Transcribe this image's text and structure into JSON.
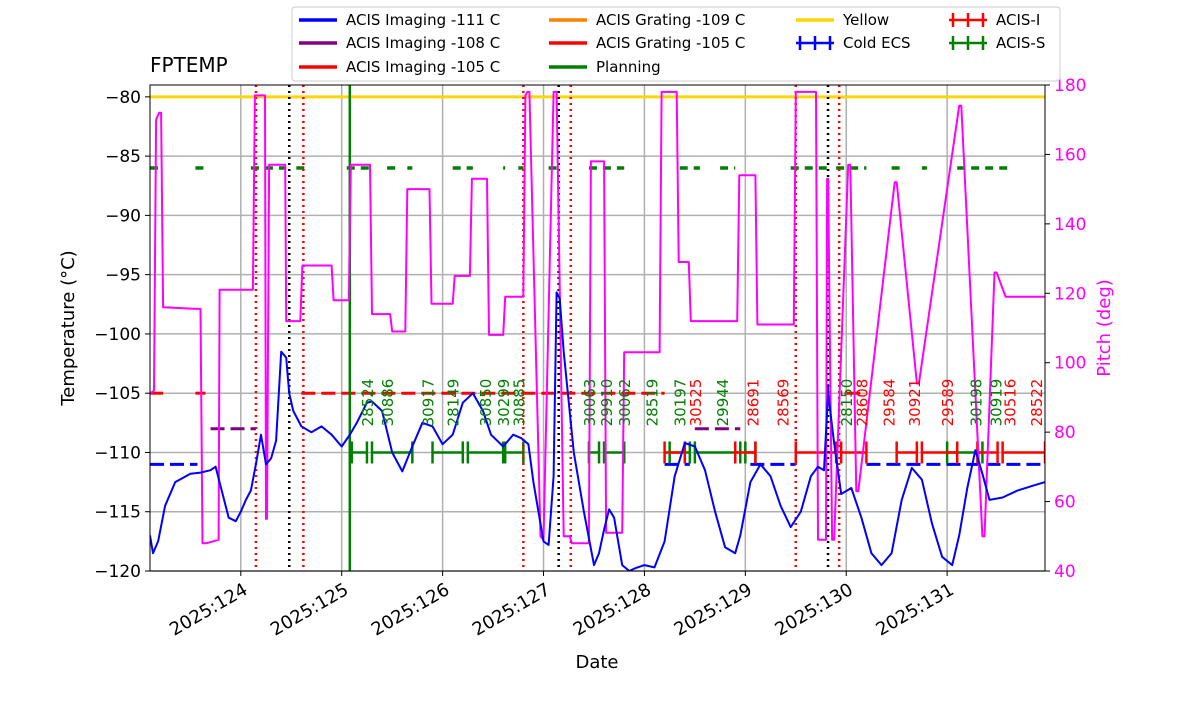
{
  "chart_data": {
    "type": "line",
    "title": "FPTEMP",
    "xlabel": "Date",
    "ylabel": "Temperature ($^\\circ$C)",
    "ylabel_text": "Temperature (°C)",
    "y2label": "Pitch (deg)",
    "xlim": [
      123.1,
      131.97
    ],
    "ylim": [
      -120,
      -79
    ],
    "y2lim": [
      40,
      180
    ],
    "grid": true,
    "x_ticks": [
      124,
      125,
      126,
      127,
      128,
      129,
      130,
      131
    ],
    "x_tick_labels": [
      "2025:124",
      "2025:125",
      "2025:126",
      "2025:127",
      "2025:128",
      "2025:129",
      "2025:130",
      "2025:131"
    ],
    "y_ticks": [
      -120,
      -115,
      -110,
      -105,
      -100,
      -95,
      -90,
      -85,
      -80
    ],
    "y_tick_labels": [
      "−120",
      "−115",
      "−110",
      "−105",
      "−100",
      "−95",
      "−90",
      "−85",
      "−80"
    ],
    "y2_ticks": [
      40,
      60,
      80,
      100,
      120,
      140,
      160,
      180
    ],
    "y2_tick_labels": [
      "40",
      "60",
      "80",
      "100",
      "120",
      "140",
      "160",
      "180"
    ],
    "legend": {
      "placement": "top",
      "entries": [
        {
          "label": "ACIS Imaging -111 C",
          "color": "#0000ff",
          "style": "line"
        },
        {
          "label": "ACIS Imaging -108 C",
          "color": "#800080",
          "style": "line"
        },
        {
          "label": "ACIS Imaging -105 C",
          "color": "#ff0000",
          "style": "line"
        },
        {
          "label": "ACIS Grating -109 C",
          "color": "#ff8000",
          "style": "line"
        },
        {
          "label": "ACIS Grating -105 C",
          "color": "#ff0000",
          "style": "line"
        },
        {
          "label": "Planning",
          "color": "#008000",
          "style": "line"
        },
        {
          "label": "Yellow",
          "color": "#ffd700",
          "style": "line"
        },
        {
          "label": "Cold ECS",
          "color": "#0000ff",
          "style": "errbar"
        },
        {
          "label": "ACIS-I",
          "color": "#ff0000",
          "style": "errbar"
        },
        {
          "label": "ACIS-S",
          "color": "#008000",
          "style": "errbar"
        }
      ]
    },
    "colors": {
      "fptemp": "#0000ff",
      "pitch": "#ff00ff",
      "yellow": "#ffd700",
      "planning": "#008000",
      "acis_i": "#ff0000",
      "acis_s": "#008000",
      "imaging_108": "#800080"
    },
    "yellow_limit": -80,
    "planning_limit": -86,
    "fptemp_series": {
      "x": [
        123.1,
        123.13,
        123.18,
        123.25,
        123.35,
        123.5,
        123.6,
        123.7,
        123.75,
        123.82,
        123.88,
        123.95,
        124.0,
        124.05,
        124.1,
        124.15,
        124.2,
        124.25,
        124.3,
        124.35,
        124.4,
        124.45,
        124.48,
        124.52,
        124.6,
        124.7,
        124.8,
        124.9,
        125.0,
        125.08,
        125.15,
        125.25,
        125.3,
        125.4,
        125.5,
        125.6,
        125.7,
        125.8,
        125.9,
        126.0,
        126.1,
        126.2,
        126.3,
        126.4,
        126.48,
        126.6,
        126.7,
        126.78,
        126.85,
        126.9,
        127.0,
        127.05,
        127.1,
        127.13,
        127.16,
        127.2,
        127.3,
        127.4,
        127.5,
        127.55,
        127.6,
        127.65,
        127.7,
        127.78,
        127.85,
        127.9,
        128.0,
        128.1,
        128.2,
        128.3,
        128.4,
        128.5,
        128.6,
        128.7,
        128.8,
        128.9,
        128.95,
        129.05,
        129.15,
        129.25,
        129.35,
        129.45,
        129.55,
        129.65,
        129.72,
        129.78,
        129.82,
        129.88,
        129.95,
        130.05,
        130.15,
        130.25,
        130.35,
        130.45,
        130.55,
        130.65,
        130.75,
        130.85,
        130.95,
        131.05,
        131.12,
        131.2,
        131.28,
        131.35,
        131.42,
        131.55,
        131.7,
        131.85,
        131.97
      ],
      "y": [
        -117,
        -118.5,
        -117.5,
        -114.5,
        -112.5,
        -111.8,
        -111.7,
        -111.5,
        -111.2,
        -113.5,
        -115.5,
        -115.8,
        -115,
        -114,
        -113.2,
        -111,
        -108.5,
        -111,
        -110.5,
        -109,
        -101.5,
        -102,
        -105,
        -106.5,
        -107.8,
        -108.3,
        -107.8,
        -108.5,
        -109.5,
        -108.5,
        -107.5,
        -105.8,
        -105.7,
        -106.5,
        -110,
        -111.6,
        -109.5,
        -107.5,
        -107.8,
        -109.3,
        -108.5,
        -105.8,
        -105,
        -106.5,
        -108.5,
        -109.5,
        -108.5,
        -108.8,
        -109.3,
        -112.5,
        -117.5,
        -117.8,
        -112,
        -96.5,
        -97,
        -101.5,
        -110,
        -115,
        -119.5,
        -118.5,
        -116.5,
        -114.8,
        -115.5,
        -119.5,
        -120,
        -119.8,
        -119.5,
        -119.7,
        -117.5,
        -112,
        -109.2,
        -109.5,
        -111.5,
        -115,
        -118,
        -118.5,
        -117,
        -112.5,
        -111,
        -112,
        -114.5,
        -116.3,
        -115,
        -112,
        -111.2,
        -111.5,
        -105,
        -109.2,
        -113.5,
        -113,
        -115.5,
        -118.5,
        -119.5,
        -118.5,
        -114,
        -111.3,
        -112.3,
        -116,
        -118.8,
        -119.5,
        -117,
        -113,
        -109.8,
        -111.8,
        -114,
        -113.8,
        -113.2,
        -112.8,
        -112.5
      ]
    },
    "pitch_series": {
      "x": [
        123.1,
        123.14,
        123.16,
        123.19,
        123.21,
        123.23,
        123.56,
        123.6,
        123.62,
        123.64,
        123.66,
        123.78,
        123.79,
        124.12,
        124.14,
        124.24,
        124.25,
        124.26,
        124.28,
        124.44,
        124.45,
        124.59,
        124.61,
        124.9,
        124.92,
        125.07,
        125.09,
        125.28,
        125.3,
        125.48,
        125.5,
        125.63,
        125.65,
        125.87,
        125.89,
        126.1,
        126.12,
        126.27,
        126.29,
        126.44,
        126.46,
        126.6,
        126.62,
        126.8,
        126.82,
        126.84,
        126.86,
        126.97,
        127.0,
        127.1,
        127.13,
        127.2,
        127.22,
        127.26,
        127.28,
        127.45,
        127.47,
        127.6,
        127.62,
        127.78,
        127.8,
        128.15,
        128.17,
        128.32,
        128.34,
        128.44,
        128.46,
        128.92,
        128.94,
        129.1,
        129.12,
        129.48,
        129.5,
        129.7,
        129.72,
        129.8,
        129.81,
        129.82,
        129.86,
        129.88,
        130.02,
        130.04,
        130.1,
        130.12,
        130.48,
        130.5,
        130.7,
        130.72,
        131.12,
        131.14,
        131.35,
        131.37,
        131.47,
        131.49,
        131.58,
        131.6,
        131.97
      ],
      "y": [
        91,
        92,
        170,
        172,
        172,
        116,
        115.5,
        115.5,
        48,
        48,
        48,
        49,
        121,
        121,
        177,
        177,
        55,
        55,
        157,
        157,
        112,
        112,
        128,
        128,
        118,
        118,
        157,
        157,
        114,
        114,
        109,
        109,
        150,
        150,
        117,
        117,
        125,
        125,
        153,
        153,
        108,
        108,
        119,
        119,
        177,
        178,
        178,
        50,
        49,
        178,
        178,
        50,
        50,
        50,
        48,
        48,
        158,
        158,
        51,
        51,
        103,
        103,
        178,
        178,
        129,
        129,
        112,
        112,
        154,
        154,
        111,
        111,
        178,
        178,
        49,
        49,
        153,
        153,
        49,
        49,
        157,
        157,
        63,
        63,
        152,
        152,
        94,
        94,
        174,
        174,
        50,
        50,
        126,
        126,
        119,
        119,
        119
      ]
    },
    "planning_segments": [
      [
        123.1,
        123.23
      ],
      [
        123.55,
        123.65
      ],
      [
        124.1,
        124.45
      ],
      [
        124.55,
        124.63
      ],
      [
        125.05,
        125.3
      ],
      [
        125.45,
        125.55
      ],
      [
        125.65,
        125.7
      ],
      [
        126.1,
        126.3
      ],
      [
        126.6,
        126.62
      ],
      [
        126.75,
        126.8
      ],
      [
        127.05,
        127.15
      ],
      [
        127.45,
        127.8
      ],
      [
        128.35,
        128.55
      ],
      [
        128.75,
        128.9
      ],
      [
        129.45,
        129.85
      ],
      [
        129.9,
        130.2
      ],
      [
        130.45,
        130.55
      ],
      [
        130.75,
        130.8
      ],
      [
        131.1,
        131.6
      ]
    ],
    "imaging_111_segments": [
      [
        123.1,
        123.57
      ],
      [
        128.2,
        128.45
      ],
      [
        129.05,
        129.5
      ],
      [
        130.2,
        131.97
      ]
    ],
    "imaging_108_segments": [
      [
        123.7,
        124.15
      ],
      [
        128.5,
        128.95
      ]
    ],
    "imaging_105_segments": [
      [
        123.1,
        123.23
      ],
      [
        123.55,
        123.65
      ],
      [
        124.6,
        128.2
      ],
      [
        130.0,
        130.2
      ]
    ],
    "acis_i_segments": [
      [
        128.2,
        128.4
      ],
      [
        128.9,
        129.1
      ],
      [
        129.5,
        129.9
      ],
      [
        129.95,
        130.2
      ],
      [
        130.5,
        130.7
      ],
      [
        130.75,
        131.1
      ],
      [
        131.3,
        131.5
      ],
      [
        131.55,
        131.97
      ]
    ],
    "acis_s_segments": [
      [
        125.1,
        125.25
      ],
      [
        125.3,
        125.7
      ],
      [
        125.9,
        126.2
      ],
      [
        126.25,
        126.6
      ],
      [
        126.62,
        126.8
      ],
      [
        127.45,
        127.55
      ],
      [
        127.6,
        127.8
      ],
      [
        128.25,
        128.45
      ],
      [
        128.5,
        128.95
      ],
      [
        129.0,
        129.1
      ],
      [
        131.0,
        131.35
      ]
    ],
    "cold_ecs_points": [
      129.82
    ],
    "vertical_lines": {
      "red_dotted": [
        124.15,
        124.62,
        126.8,
        127.27,
        129.5,
        129.93
      ],
      "black_dotted": [
        124.48,
        127.15,
        129.82
      ],
      "green_solid": [
        125.08
      ]
    },
    "obsid_labels": [
      {
        "x": 125.25,
        "text": "28524",
        "color": "green"
      },
      {
        "x": 125.45,
        "text": "30886",
        "color": "green"
      },
      {
        "x": 125.85,
        "text": "30917",
        "color": "green"
      },
      {
        "x": 126.1,
        "text": "28149",
        "color": "green"
      },
      {
        "x": 126.42,
        "text": "30850",
        "color": "green"
      },
      {
        "x": 126.6,
        "text": "30299",
        "color": "green"
      },
      {
        "x": 126.75,
        "text": "30885",
        "color": "green"
      },
      {
        "x": 127.45,
        "text": "30063",
        "color": "green"
      },
      {
        "x": 127.62,
        "text": "29910",
        "color": "green"
      },
      {
        "x": 127.8,
        "text": "30062",
        "color": "green"
      },
      {
        "x": 128.07,
        "text": "28519",
        "color": "green"
      },
      {
        "x": 128.35,
        "text": "30197",
        "color": "green"
      },
      {
        "x": 128.5,
        "text": "30525",
        "color": "red"
      },
      {
        "x": 128.77,
        "text": "29944",
        "color": "green"
      },
      {
        "x": 129.07,
        "text": "28691",
        "color": "red"
      },
      {
        "x": 129.37,
        "text": "28569",
        "color": "red"
      },
      {
        "x": 130.0,
        "text": "28150",
        "color": "green"
      },
      {
        "x": 130.15,
        "text": "28608",
        "color": "red"
      },
      {
        "x": 130.42,
        "text": "29584",
        "color": "red"
      },
      {
        "x": 130.67,
        "text": "30921",
        "color": "red"
      },
      {
        "x": 131.0,
        "text": "29589",
        "color": "red"
      },
      {
        "x": 131.28,
        "text": "30198",
        "color": "green"
      },
      {
        "x": 131.48,
        "text": "30919",
        "color": "green"
      },
      {
        "x": 131.62,
        "text": "30516",
        "color": "red"
      },
      {
        "x": 131.88,
        "text": "28522",
        "color": "red"
      }
    ]
  }
}
